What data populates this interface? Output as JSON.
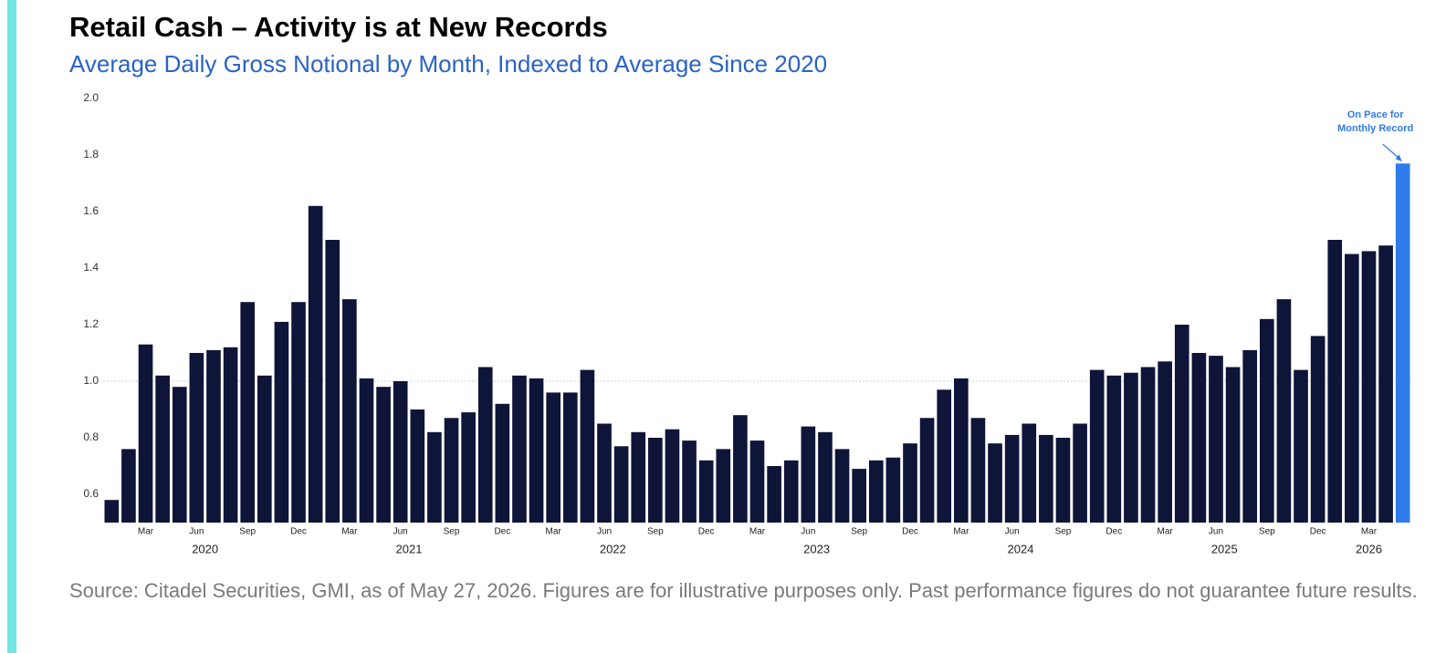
{
  "chart_data": {
    "type": "bar",
    "title": "Retail Cash – Activity is at New Records",
    "subtitle": "Average Daily Gross Notional by Month, Indexed to Average Since 2020",
    "categories": [
      null,
      null,
      "Mar",
      null,
      null,
      "Jun",
      null,
      null,
      "Sep",
      null,
      null,
      "Dec",
      null,
      null,
      "Mar",
      null,
      null,
      "Jun",
      null,
      null,
      "Sep",
      null,
      null,
      "Dec",
      null,
      null,
      "Mar",
      null,
      null,
      "Jun",
      null,
      null,
      "Sep",
      null,
      null,
      "Dec",
      null,
      null,
      "Mar",
      null,
      null,
      "Jun",
      null,
      null,
      "Sep",
      null,
      null,
      "Dec",
      null,
      null,
      "Mar",
      null,
      null,
      "Jun",
      null,
      null,
      "Sep",
      null,
      null,
      "Dec",
      null,
      null,
      "Mar",
      null,
      null,
      "Jun",
      null,
      null,
      "Sep",
      null,
      null,
      "Dec",
      null,
      null,
      "Mar",
      null,
      null
    ],
    "years": [
      "2020",
      "2021",
      "2022",
      "2023",
      "2024",
      "2025",
      "2026"
    ],
    "values": [
      0.58,
      0.76,
      1.13,
      1.02,
      0.98,
      1.1,
      1.11,
      1.12,
      1.28,
      1.02,
      1.21,
      1.28,
      1.62,
      1.5,
      1.29,
      1.01,
      0.98,
      1.0,
      0.9,
      0.82,
      0.87,
      0.89,
      1.05,
      0.92,
      1.02,
      1.01,
      0.96,
      0.96,
      1.04,
      0.85,
      0.77,
      0.82,
      0.8,
      0.83,
      0.79,
      0.72,
      0.76,
      0.88,
      0.79,
      0.7,
      0.72,
      0.84,
      0.82,
      0.76,
      0.69,
      0.72,
      0.73,
      0.78,
      0.87,
      0.97,
      1.01,
      0.87,
      0.78,
      0.81,
      0.85,
      0.81,
      0.8,
      0.85,
      1.04,
      1.02,
      1.03,
      1.05,
      1.07,
      1.2,
      1.1,
      1.09,
      1.05,
      1.11,
      1.22,
      1.29,
      1.04,
      1.16,
      1.5,
      1.45,
      1.46,
      1.48,
      1.77
    ],
    "colors": [
      "#0f1538",
      "#0f1538",
      "#0f1538",
      "#0f1538",
      "#0f1538",
      "#0f1538",
      "#0f1538",
      "#0f1538",
      "#0f1538",
      "#0f1538",
      "#0f1538",
      "#0f1538",
      "#0f1538",
      "#0f1538",
      "#0f1538",
      "#0f1538",
      "#0f1538",
      "#0f1538",
      "#0f1538",
      "#0f1538",
      "#0f1538",
      "#0f1538",
      "#0f1538",
      "#0f1538",
      "#0f1538",
      "#0f1538",
      "#0f1538",
      "#0f1538",
      "#0f1538",
      "#0f1538",
      "#0f1538",
      "#0f1538",
      "#0f1538",
      "#0f1538",
      "#0f1538",
      "#0f1538",
      "#0f1538",
      "#0f1538",
      "#0f1538",
      "#0f1538",
      "#0f1538",
      "#0f1538",
      "#0f1538",
      "#0f1538",
      "#0f1538",
      "#0f1538",
      "#0f1538",
      "#0f1538",
      "#0f1538",
      "#0f1538",
      "#0f1538",
      "#0f1538",
      "#0f1538",
      "#0f1538",
      "#0f1538",
      "#0f1538",
      "#0f1538",
      "#0f1538",
      "#0f1538",
      "#0f1538",
      "#0f1538",
      "#0f1538",
      "#0f1538",
      "#0f1538",
      "#0f1538",
      "#0f1538",
      "#0f1538",
      "#0f1538",
      "#0f1538",
      "#0f1538",
      "#0f1538",
      "#0f1538",
      "#0f1538",
      "#0f1538",
      "#0f1538",
      "#0f1538",
      "#2f7bea"
    ],
    "annotation": {
      "lines": [
        "On Pace for",
        "Monthly Record"
      ],
      "color": "#2f7bea"
    },
    "reference_line": 1.0,
    "ylim": [
      0.5,
      2.0
    ],
    "yticks": [
      {
        "value": 0.6,
        "label": "0.6"
      },
      {
        "value": 0.8,
        "label": "0.8"
      },
      {
        "value": 1.0,
        "label": "1.0"
      },
      {
        "value": 1.2,
        "label": "1.2"
      },
      {
        "value": 1.4,
        "label": "1.4"
      },
      {
        "value": 1.6,
        "label": "1.6"
      },
      {
        "value": 1.8,
        "label": "1.8"
      },
      {
        "value": 2.0,
        "label": "2.0"
      }
    ],
    "grid": false,
    "source": "Source: Citadel Securities, GMI, as of May 27, 2026. Figures are for illustrative purposes only. Past performance figures do not guarantee future results."
  }
}
